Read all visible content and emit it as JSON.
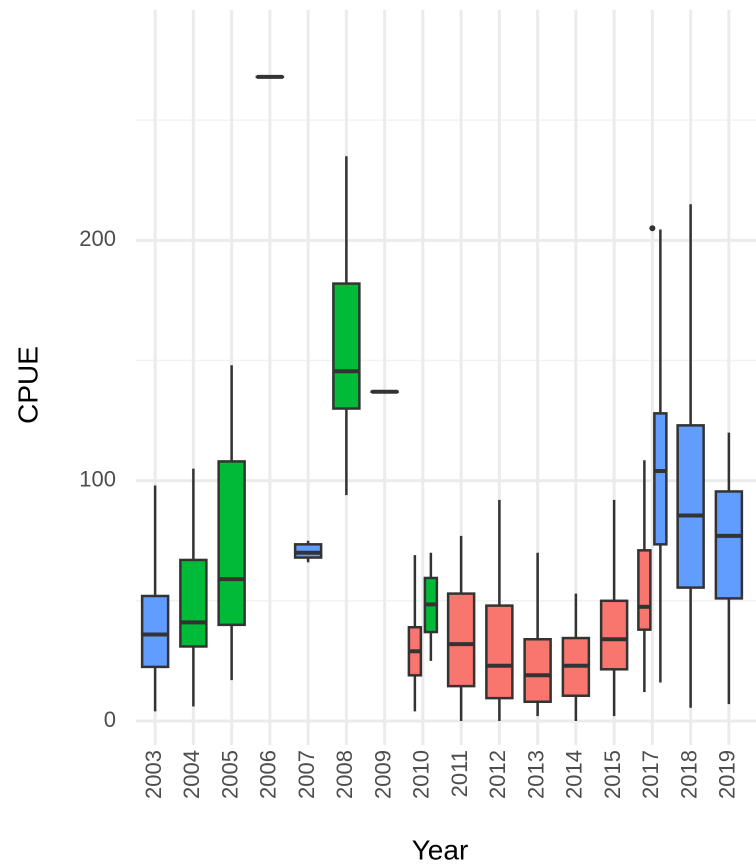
{
  "chart_data": {
    "type": "box",
    "x_label": "Year",
    "y_label": "CPUE",
    "categories": [
      "2003",
      "2004",
      "2005",
      "2006",
      "2007",
      "2008",
      "2009",
      "2010",
      "2011",
      "2012",
      "2013",
      "2014",
      "2015",
      "2017",
      "2018",
      "2019"
    ],
    "ylim": [
      -10,
      300
    ],
    "yticks": [
      0,
      100,
      200
    ],
    "grid": true,
    "series": [
      {
        "color": "#F8766D",
        "values": [
          null,
          null,
          null,
          null,
          null,
          null,
          null,
          {
            "min": 4,
            "q1": 19,
            "median": 29,
            "q3": 39,
            "max": 69
          },
          {
            "min": 0,
            "q1": 14.5,
            "median": 32,
            "q3": 53,
            "max": 77
          },
          {
            "min": 0,
            "q1": 9.5,
            "median": 23,
            "q3": 48,
            "max": 92
          },
          {
            "min": 2,
            "q1": 8,
            "median": 19,
            "q3": 34,
            "max": 70
          },
          {
            "min": 0,
            "q1": 10.5,
            "median": 23,
            "q3": 34.5,
            "max": 53
          },
          {
            "min": 2,
            "q1": 21.5,
            "median": 34,
            "q3": 50,
            "max": 92
          },
          {
            "min": 12,
            "q1": 38,
            "median": 47.5,
            "q3": 71,
            "max": 108.5
          },
          null,
          null
        ]
      },
      {
        "color": "#00BA38",
        "values": [
          null,
          {
            "min": 6,
            "q1": 31,
            "median": 41,
            "q3": 67,
            "max": 105
          },
          {
            "min": 17,
            "q1": 40,
            "median": 59,
            "q3": 108,
            "max": 148
          },
          {
            "min": 268,
            "q1": 268,
            "median": 268,
            "q3": 268,
            "max": 268
          },
          null,
          {
            "min": 94,
            "q1": 130,
            "median": 145.5,
            "q3": 182,
            "max": 235
          },
          {
            "min": 137,
            "q1": 137,
            "median": 137,
            "q3": 137,
            "max": 137
          },
          {
            "min": 25,
            "q1": 37,
            "median": 48.5,
            "q3": 59.5,
            "max": 70
          },
          null,
          null,
          null,
          null,
          null,
          null,
          null,
          null
        ]
      },
      {
        "color": "#619CFF",
        "values": [
          {
            "min": 4,
            "q1": 22.5,
            "median": 36,
            "q3": 52,
            "max": 98
          },
          null,
          null,
          null,
          {
            "min": 66,
            "q1": 68,
            "median": 70,
            "q3": 73.5,
            "max": 75
          },
          null,
          null,
          null,
          null,
          null,
          null,
          null,
          null,
          {
            "min": 16,
            "q1": 73.5,
            "median": 104,
            "q3": 128,
            "max": 204.5,
            "outliers": [
              205
            ]
          },
          {
            "min": 5.5,
            "q1": 55.5,
            "median": 85.5,
            "q3": 123,
            "max": 215
          },
          {
            "min": 7,
            "q1": 51,
            "median": 77,
            "q3": 95.5,
            "max": 120
          }
        ]
      }
    ]
  }
}
